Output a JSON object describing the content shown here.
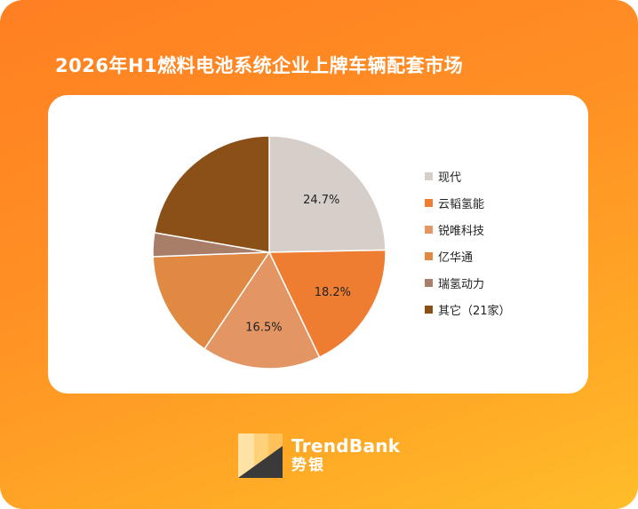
{
  "title": "2026年H1燃料电池系统企业上牌车辆配套市场",
  "chart_data": {
    "type": "pie",
    "slices": [
      {
        "label": "现代",
        "value": 24.7,
        "color": "#d6cec9",
        "data_label": "24.7%"
      },
      {
        "label": "云韬氢能",
        "value": 18.2,
        "color": "#ee7d32",
        "data_label": "18.2%"
      },
      {
        "label": "锐唯科技",
        "value": 16.5,
        "color": "#e39564",
        "data_label": "16.5%"
      },
      {
        "label": "亿华通",
        "value": 15.0,
        "color": "#df8942",
        "data_label": ""
      },
      {
        "label": "瑞氢动力",
        "value": 3.3,
        "color": "#a87e68",
        "data_label": ""
      },
      {
        "label": "其它（21家）",
        "value": 22.3,
        "color": "#8b5018",
        "data_label": ""
      }
    ],
    "legend_position": "right"
  },
  "brand": {
    "name_en": "TrendBank",
    "name_cn": "势银"
  }
}
